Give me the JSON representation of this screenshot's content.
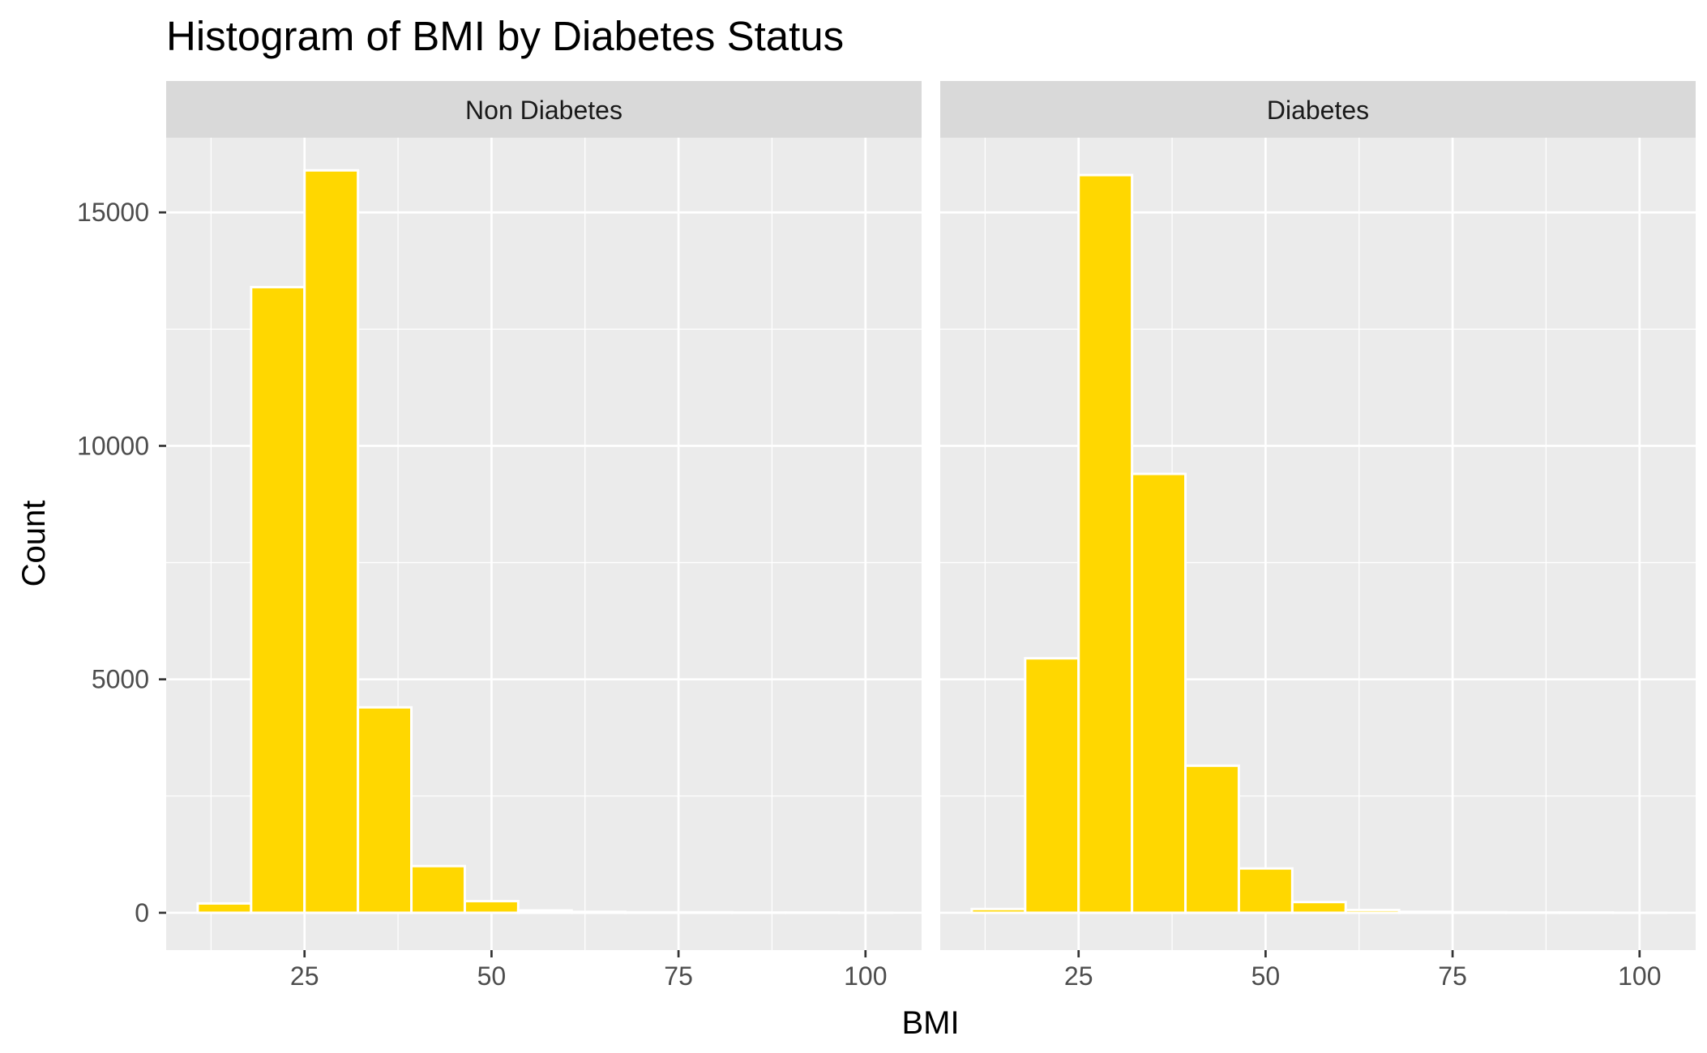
{
  "chart_data": {
    "type": "bar",
    "title": "Histogram of BMI by Diabetes Status",
    "xlabel": "BMI",
    "ylabel": "Count",
    "xlim": [
      6.5,
      107.5
    ],
    "ylim": [
      -800,
      16600
    ],
    "x_ticks": [
      25,
      50,
      75,
      100
    ],
    "y_ticks": [
      0,
      5000,
      10000,
      15000
    ],
    "bin_width": 7.142857,
    "bin_centers": [
      14.286,
      21.429,
      28.571,
      35.714,
      42.857,
      50.0,
      57.143,
      64.286,
      71.429,
      78.571,
      85.714,
      92.857,
      100.0
    ],
    "fill_color": "#FFD700",
    "outline_color": "#FFFFFF",
    "panel_background": "#EBEBEB",
    "strip_background": "#D9D9D9",
    "grid": true,
    "panels": [
      {
        "label": "Non Diabetes",
        "values": [
          200,
          13400,
          15900,
          4400,
          1000,
          250,
          50,
          20,
          10,
          10,
          5,
          5,
          0
        ]
      },
      {
        "label": "Diabetes",
        "values": [
          80,
          5450,
          15800,
          9400,
          3150,
          950,
          230,
          60,
          20,
          10,
          5,
          5,
          0
        ]
      }
    ]
  }
}
